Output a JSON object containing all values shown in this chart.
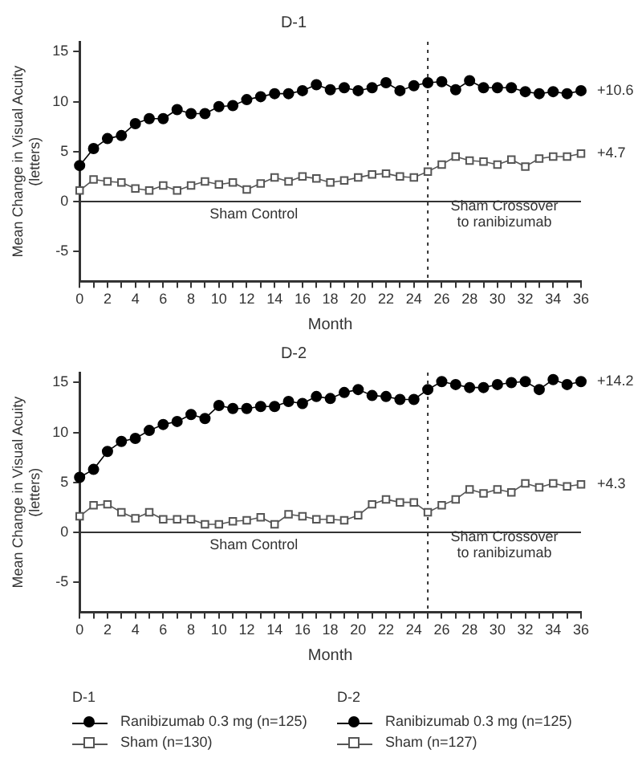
{
  "chart_data": [
    {
      "type": "line",
      "title": "D-1",
      "xlabel": "Month",
      "ylabel": "Mean Change in Visual Acuity (letters)",
      "legend_title": "D-1",
      "legend": "bottom",
      "grid": false,
      "line_style": "solid",
      "x": [
        0,
        1,
        2,
        3,
        4,
        5,
        6,
        7,
        8,
        9,
        10,
        11,
        12,
        13,
        14,
        15,
        16,
        17,
        18,
        19,
        20,
        21,
        22,
        23,
        24,
        25,
        26,
        27,
        28,
        29,
        30,
        31,
        32,
        33,
        34,
        35,
        36
      ],
      "series": [
        {
          "name": "Ranibizumab 0.3 mg (n=125)",
          "color": "#000000",
          "marker": "circle",
          "values": [
            3.6,
            5.3,
            6.3,
            6.6,
            7.8,
            8.3,
            8.3,
            9.2,
            8.8,
            8.8,
            9.5,
            9.6,
            10.2,
            10.5,
            10.8,
            10.8,
            11.1,
            11.7,
            11.2,
            11.4,
            11.1,
            11.4,
            11.9,
            11.1,
            11.6,
            11.9,
            12.0,
            11.2,
            12.1,
            11.4,
            11.4,
            11.4,
            11.0,
            10.8,
            11.0,
            10.8,
            11.1
          ]
        },
        {
          "name": "Sham (n=130)",
          "color": "#555555",
          "marker": "square",
          "values": [
            1.1,
            2.2,
            2.0,
            1.9,
            1.3,
            1.1,
            1.6,
            1.1,
            1.6,
            2.0,
            1.7,
            1.9,
            1.2,
            1.8,
            2.4,
            2.0,
            2.5,
            2.3,
            1.9,
            2.1,
            2.4,
            2.7,
            2.8,
            2.5,
            2.4,
            3.0,
            3.7,
            4.5,
            4.1,
            4.0,
            3.7,
            4.2,
            3.5,
            4.3,
            4.5,
            4.5,
            4.8
          ]
        }
      ],
      "xlim": [
        0,
        36
      ],
      "xticks": [
        0,
        {
          "value": 1,
          "label": null
        },
        2,
        {
          "value": 3,
          "label": null
        },
        4,
        {
          "value": 5,
          "label": null
        },
        6,
        {
          "value": 7,
          "label": null
        },
        8,
        {
          "value": 9,
          "label": null
        },
        10,
        {
          "value": 11,
          "label": null
        },
        12,
        {
          "value": 13,
          "label": null
        },
        14,
        {
          "value": 15,
          "label": null
        },
        16,
        {
          "value": 17,
          "label": null
        },
        18,
        {
          "value": 19,
          "label": null
        },
        20,
        {
          "value": 21,
          "label": null
        },
        22,
        {
          "value": 23,
          "label": null
        },
        24,
        {
          "value": 25,
          "label": null
        },
        26,
        {
          "value": 27,
          "label": null
        },
        28,
        {
          "value": 29,
          "label": null
        },
        30,
        {
          "value": 31,
          "label": null
        },
        32,
        {
          "value": 33,
          "label": null
        },
        34,
        {
          "value": 35,
          "label": null
        },
        36
      ],
      "ylim": [
        -8,
        16
      ],
      "yticks": [
        -5,
        0,
        5,
        10,
        15
      ],
      "ref_lines": [
        {
          "axis": "y",
          "value": 0,
          "line_style": "solid",
          "color": "#333333"
        },
        {
          "axis": "x",
          "value": 25,
          "line_style": "dotted",
          "color": "#333333"
        }
      ],
      "annotations": [
        "Sham Control",
        "Sham Crossover to ranibizumab",
        "+10.6",
        "+4.7"
      ]
    },
    {
      "type": "line",
      "title": "D-2",
      "xlabel": "Month",
      "ylabel": "Mean Change in Visual Acuity (letters)",
      "legend_title": "D-2",
      "legend": "bottom",
      "grid": false,
      "line_style": "solid",
      "x": [
        0,
        1,
        2,
        3,
        4,
        5,
        6,
        7,
        8,
        9,
        10,
        11,
        12,
        13,
        14,
        15,
        16,
        17,
        18,
        19,
        20,
        21,
        22,
        23,
        24,
        25,
        26,
        27,
        28,
        29,
        30,
        31,
        32,
        33,
        34,
        35,
        36
      ],
      "series": [
        {
          "name": "Ranibizumab 0.3 mg (n=125)",
          "color": "#000000",
          "marker": "circle",
          "values": [
            5.5,
            6.3,
            8.1,
            9.1,
            9.4,
            10.2,
            10.8,
            11.1,
            11.8,
            11.4,
            12.7,
            12.4,
            12.4,
            12.6,
            12.6,
            13.1,
            12.9,
            13.6,
            13.4,
            14.0,
            14.3,
            13.7,
            13.6,
            13.3,
            13.3,
            14.3,
            15.1,
            14.8,
            14.5,
            14.5,
            14.8,
            15.0,
            15.1,
            14.3,
            15.3,
            14.8,
            15.1
          ]
        },
        {
          "name": "Sham (n=127)",
          "color": "#555555",
          "marker": "square",
          "values": [
            1.6,
            2.7,
            2.8,
            2.0,
            1.4,
            2.0,
            1.3,
            1.3,
            1.3,
            0.8,
            0.8,
            1.1,
            1.2,
            1.5,
            0.8,
            1.8,
            1.6,
            1.3,
            1.3,
            1.2,
            1.7,
            2.8,
            3.3,
            3.0,
            3.0,
            2.0,
            2.7,
            3.3,
            4.3,
            3.9,
            4.3,
            4.0,
            4.9,
            4.5,
            4.9,
            4.6,
            4.8
          ]
        }
      ],
      "xlim": [
        0,
        36
      ],
      "xticks": [
        0,
        {
          "value": 1,
          "label": null
        },
        2,
        {
          "value": 3,
          "label": null
        },
        4,
        {
          "value": 5,
          "label": null
        },
        6,
        {
          "value": 7,
          "label": null
        },
        8,
        {
          "value": 9,
          "label": null
        },
        10,
        {
          "value": 11,
          "label": null
        },
        12,
        {
          "value": 13,
          "label": null
        },
        14,
        {
          "value": 15,
          "label": null
        },
        16,
        {
          "value": 17,
          "label": null
        },
        18,
        {
          "value": 19,
          "label": null
        },
        20,
        {
          "value": 21,
          "label": null
        },
        22,
        {
          "value": 23,
          "label": null
        },
        24,
        {
          "value": 25,
          "label": null
        },
        26,
        {
          "value": 27,
          "label": null
        },
        28,
        {
          "value": 29,
          "label": null
        },
        30,
        {
          "value": 31,
          "label": null
        },
        32,
        {
          "value": 33,
          "label": null
        },
        34,
        {
          "value": 35,
          "label": null
        },
        36
      ],
      "ylim": [
        -8,
        16
      ],
      "yticks": [
        -5,
        0,
        5,
        10,
        15
      ],
      "ref_lines": [
        {
          "axis": "y",
          "value": 0,
          "line_style": "solid",
          "color": "#333333"
        },
        {
          "axis": "x",
          "value": 25,
          "line_style": "dotted",
          "color": "#333333"
        }
      ],
      "annotations": [
        "Sham Control",
        "Sham Crossover to ranibizumab",
        "+14.2",
        "+4.3"
      ]
    }
  ]
}
